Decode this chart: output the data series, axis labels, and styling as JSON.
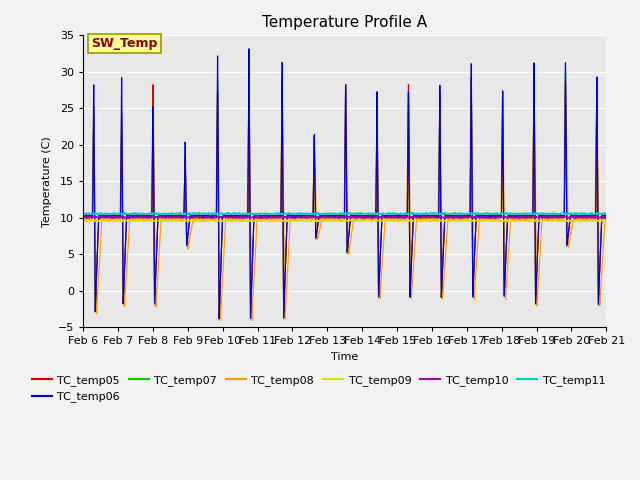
{
  "title": "Temperature Profile A",
  "xlabel": "Time",
  "ylabel": "Temperature (C)",
  "ylim": [
    -5,
    35
  ],
  "series_colors": {
    "TC_temp05": "#dd0000",
    "TC_temp06": "#0000dd",
    "TC_temp07": "#00cc00",
    "TC_temp08": "#ff9900",
    "TC_temp09": "#dddd00",
    "TC_temp10": "#aa00aa",
    "TC_temp11": "#00cccc"
  },
  "series_linewidth": 0.8,
  "xtick_labels": [
    "Feb 6",
    "Feb 7",
    "Feb 8",
    "Feb 9",
    "Feb 10",
    "Feb 11",
    "Feb 12",
    "Feb 13",
    "Feb 14",
    "Feb 15",
    "Feb 16",
    "Feb 17",
    "Feb 18",
    "Feb 19",
    "Feb 20",
    "Feb 21"
  ],
  "annotation_text": "SW_Temp",
  "annotation_color": "#8B0000",
  "annotation_bg": "#ffff99",
  "annotation_border": "#999900",
  "plot_bg": "#e8e8e8",
  "fig_bg": "#f2f2f2",
  "grid_color": "#ffffff",
  "base_temp": 10.2,
  "base_temp09": 9.6,
  "base_temp10": 10.05,
  "base_temp11": 10.55,
  "title_fontsize": 11,
  "legend_fontsize": 8,
  "axis_fontsize": 8,
  "tick_fontsize": 8
}
